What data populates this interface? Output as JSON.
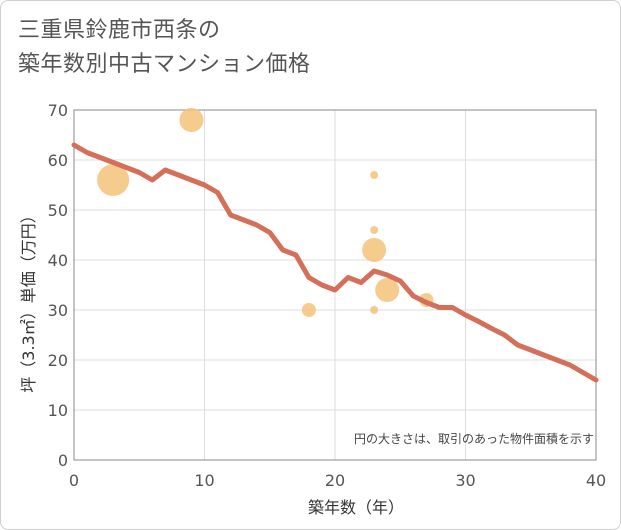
{
  "title_line1": "三重県鈴鹿市西条の",
  "title_line2": "築年数別中古マンション価格",
  "chart_data": {
    "type": "scatter+line",
    "title": "三重県鈴鹿市西条の築年数別中古マンション価格",
    "xlabel": "築年数（年）",
    "ylabel": "坪（3.3㎡）単価（万円）",
    "xlim": [
      0,
      40
    ],
    "ylim": [
      0,
      70
    ],
    "xticks": [
      0,
      10,
      20,
      30,
      40
    ],
    "yticks": [
      0,
      10,
      20,
      30,
      40,
      50,
      60,
      70
    ],
    "grid": true,
    "note": "円の大きさは、取引のあった物件面積を示す",
    "colors": {
      "line": "#d4705a",
      "bubble": "#f5c27a",
      "grid": "#dddddd",
      "axis": "#888888"
    },
    "series": [
      {
        "name": "trend",
        "kind": "line",
        "x": [
          0,
          1,
          2,
          3,
          4,
          5,
          6,
          7,
          8,
          9,
          10,
          11,
          12,
          13,
          14,
          15,
          16,
          17,
          18,
          19,
          20,
          21,
          22,
          23,
          24,
          25,
          26,
          27,
          28,
          29,
          30,
          31,
          32,
          33,
          34,
          35,
          36,
          37,
          38,
          39,
          40
        ],
        "y": [
          63,
          61.5,
          60.5,
          59.5,
          58.5,
          57.5,
          56,
          58,
          57,
          56,
          55,
          53.5,
          49,
          48,
          47,
          45.5,
          42,
          41,
          36.5,
          35,
          34,
          36.5,
          35.5,
          37.8,
          37,
          35.8,
          32.8,
          31.5,
          30.5,
          30.5,
          29,
          27.7,
          26.3,
          25,
          23,
          22,
          21,
          20,
          19,
          17.5,
          16
        ]
      },
      {
        "name": "transactions",
        "kind": "bubble",
        "points": [
          {
            "x": 3,
            "y": 56,
            "size": 5
          },
          {
            "x": 9,
            "y": 68,
            "size": 4
          },
          {
            "x": 18,
            "y": 30,
            "size": 2
          },
          {
            "x": 23,
            "y": 57,
            "size": 1
          },
          {
            "x": 23,
            "y": 46,
            "size": 1
          },
          {
            "x": 23,
            "y": 42,
            "size": 4
          },
          {
            "x": 23,
            "y": 30,
            "size": 1
          },
          {
            "x": 24,
            "y": 34,
            "size": 4
          },
          {
            "x": 27,
            "y": 32,
            "size": 2
          }
        ]
      }
    ]
  }
}
